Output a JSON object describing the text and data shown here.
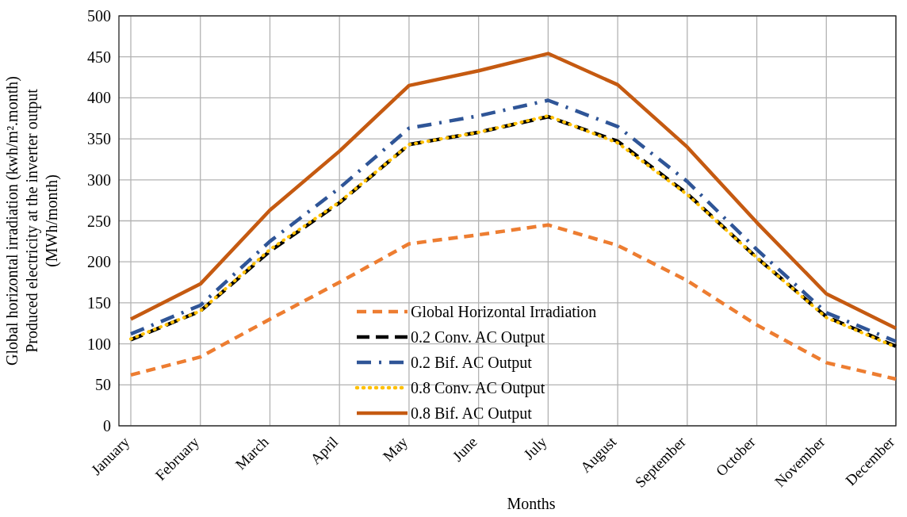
{
  "chart_data": {
    "type": "line",
    "xlabel": "Months",
    "ylabel": "Global horizontal irradiation  (kwh/m².month)\nProduced electricity  at the inverter output\n(MWh/month)",
    "categories": [
      "January",
      "February",
      "March",
      "April",
      "May",
      "June",
      "July",
      "August",
      "September",
      "October",
      "November",
      "December"
    ],
    "series": [
      {
        "name": "Global Horizontal Irradiation",
        "color": "#ed7d31",
        "line_style": "dashed",
        "values": [
          62,
          84,
          130,
          175,
          222,
          233,
          245,
          220,
          177,
          123,
          77,
          57
        ]
      },
      {
        "name": "0.2 Conv. AC Output",
        "color": "#000000",
        "line_style": "dashed",
        "values": [
          105,
          140,
          213,
          272,
          343,
          358,
          377,
          347,
          283,
          205,
          133,
          97
        ]
      },
      {
        "name": "0.2 Bif. AC Output",
        "color": "#2f5597",
        "line_style": "dashed",
        "values": [
          112,
          147,
          225,
          290,
          363,
          378,
          397,
          365,
          298,
          215,
          138,
          103
        ]
      },
      {
        "name": "0.8 Conv. AC Output",
        "color": "#ffc000",
        "line_style": "dotted",
        "values": [
          106,
          140,
          215,
          273,
          343,
          358,
          378,
          345,
          282,
          205,
          132,
          96
        ]
      },
      {
        "name": "0.8 Bif. AC Output",
        "color": "#c55a11",
        "line_style": "solid",
        "values": [
          130,
          173,
          263,
          335,
          415,
          433,
          454,
          416,
          340,
          248,
          161,
          119
        ]
      }
    ],
    "ylim": [
      0,
      500
    ],
    "yticks": [
      0,
      50,
      100,
      150,
      200,
      250,
      300,
      350,
      400,
      450,
      500
    ],
    "grid": true,
    "legend": "bottom",
    "marker": "none"
  }
}
